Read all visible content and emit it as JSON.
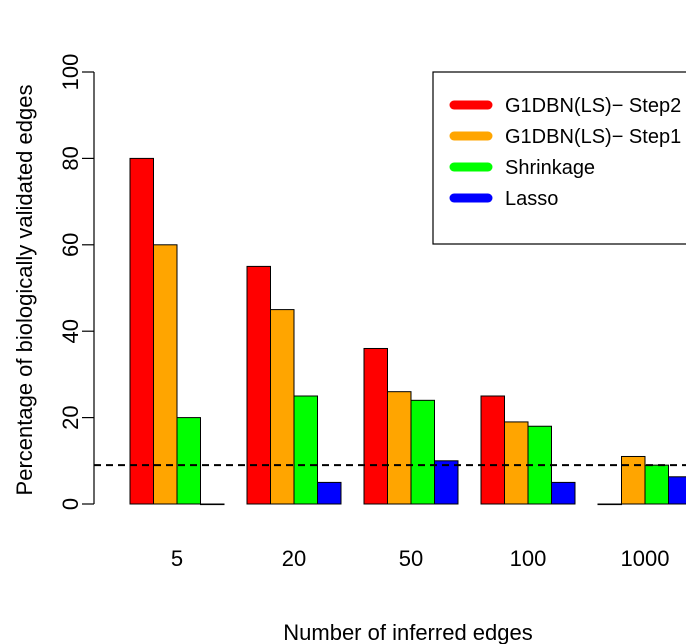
{
  "chart_data": {
    "type": "bar",
    "title": "",
    "xlabel": "Number of inferred edges",
    "ylabel": "Percentage of biologically validated edges",
    "categories": [
      "5",
      "20",
      "50",
      "100",
      "1000"
    ],
    "ylim": [
      0,
      100
    ],
    "yticks": [
      0,
      20,
      40,
      60,
      80,
      100
    ],
    "reference_line": {
      "value": 9,
      "style": "dashed"
    },
    "legend_position": "top-right",
    "series": [
      {
        "name": "G1DBN(LS)− Step2",
        "color": "#ff0000",
        "values": [
          80,
          55,
          36,
          25,
          0
        ]
      },
      {
        "name": "G1DBN(LS)− Step1",
        "color": "#ffa500",
        "values": [
          60,
          45,
          26,
          19,
          11
        ]
      },
      {
        "name": "Shrinkage",
        "color": "#00ff00",
        "values": [
          20,
          25,
          24,
          18,
          9
        ]
      },
      {
        "name": "Lasso",
        "color": "#0000ff",
        "values": [
          0,
          5,
          10,
          5,
          6.3
        ]
      }
    ]
  }
}
